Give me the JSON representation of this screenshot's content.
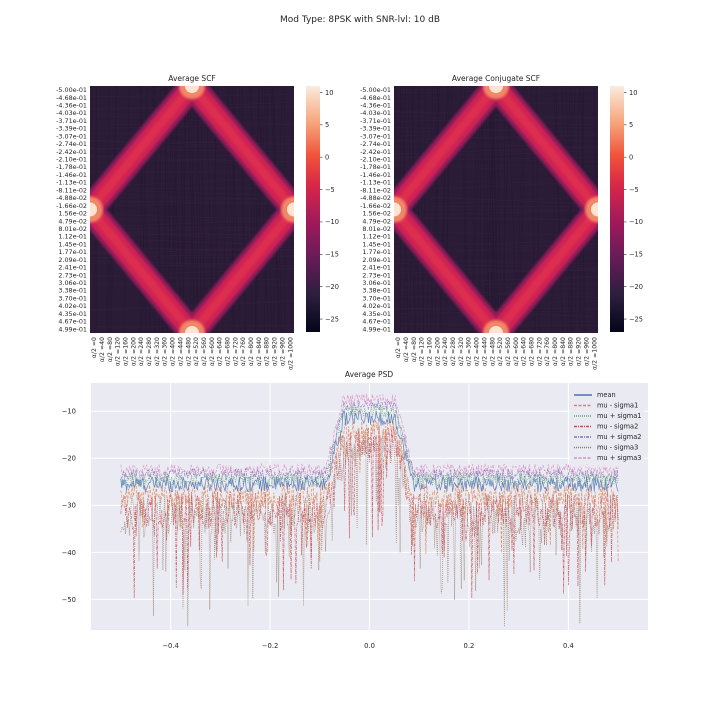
{
  "figure": {
    "suptitle": "Mod Type: 8PSK with SNR-lvl: 10 dB"
  },
  "chart_data": [
    {
      "type": "heatmap",
      "title": "Average SCF",
      "ytick_labels": [
        "-5.00e-01",
        "-4.68e-01",
        "-4.36e-01",
        "-4.03e-01",
        "-3.71e-01",
        "-3.39e-01",
        "-3.07e-01",
        "-2.74e-01",
        "-2.42e-01",
        "-2.10e-01",
        "-1.78e-01",
        "-1.46e-01",
        "-1.13e-01",
        "-8.11e-02",
        "-4.88e-02",
        "-1.66e-02",
        "1.56e-02",
        "4.79e-02",
        "8.01e-02",
        "1.12e-01",
        "1.45e-01",
        "1.77e-01",
        "2.09e-01",
        "2.41e-01",
        "2.73e-01",
        "3.06e-01",
        "3.38e-01",
        "3.70e-01",
        "4.02e-01",
        "4.35e-01",
        "4.67e-01",
        "4.99e-01"
      ],
      "xtick_labels": [
        "α/2 =0",
        "α/2 =40",
        "α/2 =80",
        "α/2 =120",
        "α/2 =160",
        "α/2 =200",
        "α/2 =240",
        "α/2 =280",
        "α/2 =320",
        "α/2 =360",
        "α/2 =400",
        "α/2 =440",
        "α/2 =480",
        "α/2 =520",
        "α/2 =560",
        "α/2 =600",
        "α/2 =640",
        "α/2 =680",
        "α/2 =720",
        "α/2 =760",
        "α/2 =800",
        "α/2 =840",
        "α/2 =880",
        "α/2 =920",
        "α/2 =960",
        "α/2 =1000"
      ],
      "colorbar_ticks": [
        10,
        5,
        0,
        -5,
        -10,
        -15,
        -20,
        -25
      ],
      "colorbar_tick_labels": [
        "10",
        "5",
        "0",
        "−5",
        "−10",
        "−15",
        "−20",
        "−25"
      ],
      "vmin": -27,
      "vmax": 11,
      "pattern": "diamond"
    },
    {
      "type": "heatmap",
      "title": "Average Conjugate SCF",
      "ytick_labels": [
        "-5.00e-01",
        "-4.68e-01",
        "-4.36e-01",
        "-4.03e-01",
        "-3.71e-01",
        "-3.39e-01",
        "-3.07e-01",
        "-2.74e-01",
        "-2.42e-01",
        "-2.10e-01",
        "-1.78e-01",
        "-1.46e-01",
        "-1.13e-01",
        "-8.11e-02",
        "-4.88e-02",
        "-1.66e-02",
        "1.56e-02",
        "4.79e-02",
        "8.01e-02",
        "1.12e-01",
        "1.45e-01",
        "1.77e-01",
        "2.09e-01",
        "2.41e-01",
        "2.73e-01",
        "3.06e-01",
        "3.38e-01",
        "3.70e-01",
        "4.02e-01",
        "4.35e-01",
        "4.67e-01",
        "4.99e-01"
      ],
      "xtick_labels": [
        "α/2 =0",
        "α/2 =40",
        "α/2 =80",
        "α/2 =120",
        "α/2 =160",
        "α/2 =200",
        "α/2 =240",
        "α/2 =280",
        "α/2 =320",
        "α/2 =360",
        "α/2 =400",
        "α/2 =440",
        "α/2 =480",
        "α/2 =520",
        "α/2 =560",
        "α/2 =600",
        "α/2 =640",
        "α/2 =680",
        "α/2 =720",
        "α/2 =760",
        "α/2 =800",
        "α/2 =840",
        "α/2 =880",
        "α/2 =920",
        "α/2 =960",
        "α/2 =1000"
      ],
      "colorbar_ticks": [
        10,
        5,
        0,
        -5,
        -10,
        -15,
        -20,
        -25
      ],
      "colorbar_tick_labels": [
        "10",
        "5",
        "0",
        "−5",
        "−10",
        "−15",
        "−20",
        "−25"
      ],
      "vmin": -27,
      "vmax": 11,
      "pattern": "diamond"
    },
    {
      "type": "line",
      "title": "Average PSD",
      "xlim": [
        -0.56,
        0.56
      ],
      "ylim": [
        -56.5,
        -4
      ],
      "xticks": [
        -0.4,
        -0.2,
        0.0,
        0.2,
        0.4
      ],
      "xtick_labels": [
        "−0.4",
        "−0.2",
        "0.0",
        "0.2",
        "0.4"
      ],
      "yticks": [
        -10,
        -20,
        -30,
        -40,
        -50
      ],
      "ytick_labels": [
        "−10",
        "−20",
        "−30",
        "−40",
        "−50"
      ],
      "grid": true,
      "legend_position": "top-right",
      "signal_band": [
        -0.07,
        0.07
      ],
      "series": [
        {
          "name": "mean",
          "color": "#4c72b0",
          "dash": "solid",
          "base_out": -25.5,
          "base_in": -11.5,
          "noise": 1.6,
          "dips": 0.0
        },
        {
          "name": "mu - sigma1",
          "color": "#dd8452",
          "dash": "dashed",
          "base_out": -28.0,
          "base_in": -14.0,
          "noise": 2.8,
          "dips": 0.06
        },
        {
          "name": "mu + sigma1",
          "color": "#55a868",
          "dash": "dotted",
          "base_out": -24.5,
          "base_in": -10.0,
          "noise": 1.4,
          "dips": 0.0
        },
        {
          "name": "mu - sigma2",
          "color": "#c44e52",
          "dash": "dashdot",
          "base_out": -31.0,
          "base_in": -17.0,
          "noise": 4.0,
          "dips": 0.14
        },
        {
          "name": "mu + sigma2",
          "color": "#8172b3",
          "dash": "dashdot",
          "base_out": -23.5,
          "base_in": -9.0,
          "noise": 1.3,
          "dips": 0.0
        },
        {
          "name": "mu - sigma3",
          "color": "#937860",
          "dash": "dotted",
          "base_out": -32.0,
          "base_in": -18.0,
          "noise": 4.5,
          "dips": 0.18
        },
        {
          "name": "mu + sigma3",
          "color": "#da8bc3",
          "dash": "dashed",
          "base_out": -22.5,
          "base_in": -7.5,
          "noise": 1.3,
          "dips": 0.0
        }
      ]
    }
  ]
}
